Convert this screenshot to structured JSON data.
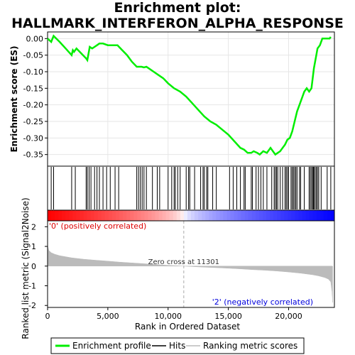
{
  "title": "Enrichment plot:\nHALLMARK_INTERFERON_ALPHA_RESPONSE",
  "title_lines": [
    "Enrichment plot:",
    "HALLMARK_INTERFERON_ALPHA_RESPONSE"
  ],
  "colors": {
    "enrichment_line": "#00ee00",
    "hit_line": "#000000",
    "ranking_fill": "#bbbbbb",
    "pos_label": "#dd0000",
    "neg_label": "#0000dd",
    "zero_cross_line": "#aaaaaa"
  },
  "chart_data": [
    {
      "type": "line",
      "name": "enrichment-score-plot",
      "ylabel": "Enrichment score (ES)",
      "xlim": [
        0,
        23800
      ],
      "ylim": [
        -0.385,
        0.02
      ],
      "yticks": [
        0.0,
        -0.05,
        -0.1,
        -0.15,
        -0.2,
        -0.25,
        -0.3,
        -0.35
      ],
      "ytick_labels": [
        "0.00",
        "-0.05",
        "-0.10",
        "-0.15",
        "-0.20",
        "-0.25",
        "-0.30",
        "-0.35"
      ],
      "grid": true,
      "series": [
        {
          "name": "Enrichment profile",
          "x": [
            0,
            300,
            500,
            1000,
            1500,
            2000,
            2100,
            2200,
            2400,
            2800,
            3200,
            3300,
            3400,
            3500,
            3700,
            3900,
            4100,
            4300,
            4600,
            5000,
            5400,
            5800,
            6200,
            6600,
            7000,
            7400,
            7600,
            7800,
            8000,
            8200,
            8400,
            8800,
            9200,
            9600,
            10000,
            10500,
            11000,
            11500,
            12000,
            12500,
            13000,
            13500,
            14000,
            14500,
            15000,
            15500,
            16000,
            16300,
            16600,
            16900,
            17100,
            17400,
            17600,
            17900,
            18200,
            18500,
            18700,
            18900,
            19100,
            19300,
            19500,
            19700,
            19900,
            20100,
            20300,
            20500,
            20700,
            20900,
            21100,
            21300,
            21500,
            21700,
            21900,
            22000,
            22100,
            22200,
            22300,
            22400,
            22600,
            22800,
            23000,
            23200,
            23400,
            23500
          ],
          "y": [
            0.0,
            -0.01,
            0.008,
            -0.01,
            -0.03,
            -0.05,
            -0.035,
            -0.04,
            -0.03,
            -0.045,
            -0.06,
            -0.065,
            -0.045,
            -0.025,
            -0.03,
            -0.025,
            -0.02,
            -0.015,
            -0.015,
            -0.02,
            -0.02,
            -0.02,
            -0.035,
            -0.05,
            -0.07,
            -0.085,
            -0.085,
            -0.085,
            -0.087,
            -0.085,
            -0.09,
            -0.1,
            -0.11,
            -0.12,
            -0.135,
            -0.15,
            -0.16,
            -0.175,
            -0.195,
            -0.215,
            -0.235,
            -0.25,
            -0.26,
            -0.275,
            -0.29,
            -0.31,
            -0.33,
            -0.335,
            -0.345,
            -0.345,
            -0.34,
            -0.345,
            -0.35,
            -0.34,
            -0.345,
            -0.33,
            -0.34,
            -0.35,
            -0.345,
            -0.34,
            -0.33,
            -0.32,
            -0.305,
            -0.3,
            -0.28,
            -0.25,
            -0.22,
            -0.2,
            -0.18,
            -0.16,
            -0.15,
            -0.16,
            -0.15,
            -0.12,
            -0.09,
            -0.07,
            -0.05,
            -0.03,
            -0.02,
            0.0,
            0.0,
            0.0,
            0.0,
            0.005
          ]
        }
      ]
    },
    {
      "type": "bar",
      "name": "gene-hits",
      "legend_label": "Hits",
      "hit_ranks": [
        300,
        500,
        2000,
        2300,
        3200,
        3300,
        3450,
        3600,
        3900,
        4100,
        4300,
        4600,
        4900,
        5200,
        5600,
        5900,
        7400,
        7550,
        7700,
        7850,
        8000,
        8200,
        8700,
        9100,
        9300,
        10000,
        10300,
        10500,
        10600,
        10800,
        11000,
        11500,
        11700,
        11800,
        12200,
        12700,
        12900,
        13000,
        13200,
        13300,
        13700,
        14000,
        15100,
        15400,
        15700,
        16000,
        16300,
        16400,
        16900,
        17000,
        17300,
        17500,
        17700,
        17900,
        18200,
        18600,
        18800,
        18900,
        19000,
        19100,
        19300,
        19500,
        19700,
        19800,
        19900,
        20000,
        20200,
        20300,
        20400,
        20500,
        20600,
        20700,
        20900,
        21000,
        21300,
        21700,
        21800,
        21900,
        22000,
        22050,
        22100,
        22200,
        22300,
        22400,
        22500,
        22700,
        23200,
        23500
      ]
    },
    {
      "type": "area",
      "name": "ranked-list-metric-plot",
      "ylabel": "Ranked list metric (Signal2Noise)",
      "xlabel": "Rank in Ordered Dataset",
      "legend_label": "Ranking metric scores",
      "xlim": [
        0,
        23800
      ],
      "ylim": [
        -2.1,
        2.3
      ],
      "xticks": [
        0,
        5000,
        10000,
        15000,
        20000
      ],
      "xtick_labels": [
        "0",
        "5,000",
        "10,000",
        "15,000",
        "20,000"
      ],
      "yticks": [
        2,
        1,
        0,
        -1,
        -2
      ],
      "ytick_labels": [
        "2",
        "1",
        "0",
        "-1",
        "-2"
      ],
      "zero_cross_label": "Zero cross at 11301",
      "zero_cross_rank": 11301,
      "pos_label": "'0' (positively correlated)",
      "neg_label": "'2' (negatively correlated)",
      "x": [
        0,
        100,
        300,
        600,
        1000,
        2000,
        3000,
        4000,
        5000,
        6000,
        7000,
        8000,
        9000,
        10000,
        11301,
        12500,
        14000,
        15000,
        16000,
        17000,
        18000,
        19000,
        20000,
        21000,
        22000,
        22500,
        23000,
        23300,
        23500,
        23600,
        23650
      ],
      "y": [
        1.05,
        0.8,
        0.68,
        0.6,
        0.53,
        0.42,
        0.35,
        0.3,
        0.25,
        0.2,
        0.16,
        0.12,
        0.08,
        0.04,
        0.0,
        -0.04,
        -0.08,
        -0.11,
        -0.14,
        -0.18,
        -0.21,
        -0.25,
        -0.3,
        -0.36,
        -0.44,
        -0.5,
        -0.58,
        -0.66,
        -0.8,
        -1.3,
        -1.85
      ]
    }
  ],
  "legend": {
    "items": [
      {
        "label": "Enrichment profile",
        "color": "#00ee00"
      },
      {
        "label": "Hits",
        "color": "#000000"
      },
      {
        "label": "Ranking metric scores",
        "color": "#bbbbbb"
      }
    ]
  }
}
